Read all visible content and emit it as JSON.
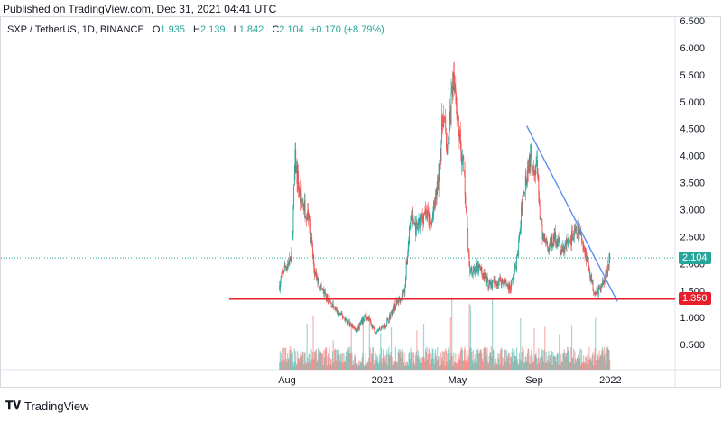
{
  "header": {
    "published": "Published on TradingView.com, Dec 31, 2021 04:41 UTC"
  },
  "legend": {
    "symbol": "SXP / TetherUS, 1D, BINANCE",
    "o_label": "O",
    "o_value": "1.935",
    "h_label": "H",
    "h_value": "2.139",
    "l_label": "L",
    "l_value": "1.842",
    "c_label": "C",
    "c_value": "2.104",
    "change": "+0.170 (+8.79%)"
  },
  "footer": {
    "brand": "TradingView"
  },
  "colors": {
    "up": "#26a69a",
    "down": "#ef5350",
    "support": "#e91e2c",
    "trend": "#5b8def",
    "last_price": "#26a69a",
    "grid": "#f0f3fa"
  },
  "chart_data": {
    "type": "candlestick",
    "y_scale": "linear",
    "ylim": [
      0,
      6.5
    ],
    "y_ticks": [
      "0.500",
      "1.000",
      "1.500",
      "2.000",
      "2.500",
      "3.000",
      "3.500",
      "4.000",
      "4.500",
      "5.000",
      "5.500",
      "6.000",
      "6.500"
    ],
    "x_ticks": [
      "Aug",
      "2021",
      "May",
      "Sep",
      "2022"
    ],
    "last_price": 2.104,
    "last_price_label": "2.104",
    "support_level": 1.35,
    "support_label": "1.350",
    "trendline": {
      "from": {
        "date": "2021-08-20",
        "price": 4.55
      },
      "to": {
        "date": "2022-01-12",
        "price": 1.3
      }
    },
    "anchors": [
      [
        "2020-07-20",
        1.6
      ],
      [
        "2020-07-27",
        1.9
      ],
      [
        "2020-08-08",
        2.1
      ],
      [
        "2020-08-14",
        3.9
      ],
      [
        "2020-08-22",
        3.2
      ],
      [
        "2020-09-05",
        2.9
      ],
      [
        "2020-09-14",
        1.8
      ],
      [
        "2020-10-01",
        1.4
      ],
      [
        "2020-10-20",
        1.1
      ],
      [
        "2020-11-05",
        0.95
      ],
      [
        "2020-11-20",
        0.75
      ],
      [
        "2020-12-05",
        1.05
      ],
      [
        "2020-12-20",
        0.75
      ],
      [
        "2021-01-05",
        0.85
      ],
      [
        "2021-01-20",
        1.2
      ],
      [
        "2021-02-05",
        1.5
      ],
      [
        "2021-02-15",
        2.9
      ],
      [
        "2021-02-25",
        2.6
      ],
      [
        "2021-03-10",
        3.0
      ],
      [
        "2021-03-20",
        2.7
      ],
      [
        "2021-03-31",
        3.5
      ],
      [
        "2021-04-08",
        4.8
      ],
      [
        "2021-04-15",
        4.0
      ],
      [
        "2021-04-25",
        5.6
      ],
      [
        "2021-05-05",
        4.3
      ],
      [
        "2021-05-12",
        3.6
      ],
      [
        "2021-05-20",
        1.9
      ],
      [
        "2021-06-05",
        1.9
      ],
      [
        "2021-06-22",
        1.6
      ],
      [
        "2021-07-10",
        1.7
      ],
      [
        "2021-07-25",
        1.55
      ],
      [
        "2021-08-05",
        2.1
      ],
      [
        "2021-08-15",
        3.4
      ],
      [
        "2021-08-25",
        4.0
      ],
      [
        "2021-09-05",
        3.8
      ],
      [
        "2021-09-12",
        2.6
      ],
      [
        "2021-09-25",
        2.3
      ],
      [
        "2021-10-05",
        2.5
      ],
      [
        "2021-10-15",
        2.2
      ],
      [
        "2021-10-28",
        2.45
      ],
      [
        "2021-11-10",
        2.6
      ],
      [
        "2021-11-18",
        2.4
      ],
      [
        "2021-11-28",
        1.9
      ],
      [
        "2021-12-05",
        1.5
      ],
      [
        "2021-12-15",
        1.5
      ],
      [
        "2021-12-24",
        1.8
      ],
      [
        "2021-12-31",
        2.104
      ]
    ]
  }
}
